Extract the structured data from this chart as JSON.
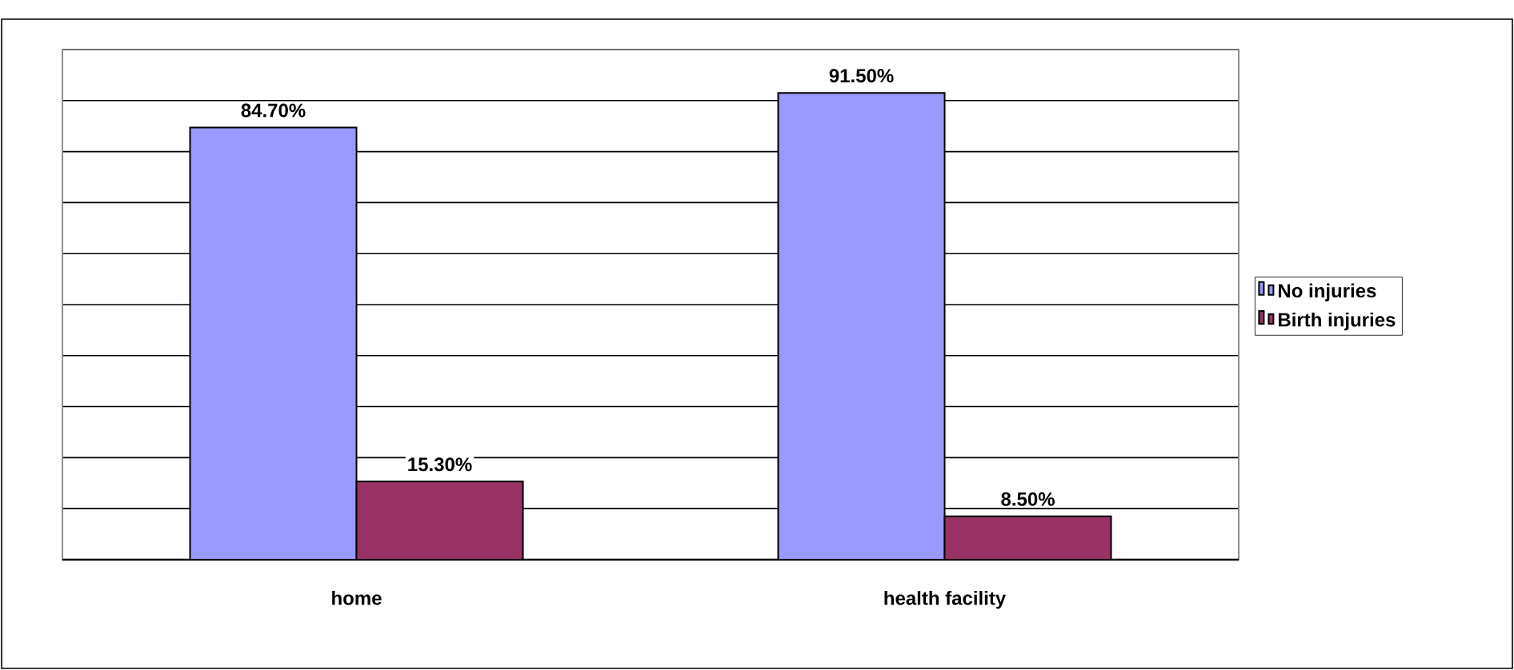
{
  "chart_data": {
    "type": "bar",
    "categories": [
      "home",
      "health facility"
    ],
    "series": [
      {
        "name": "No injuries",
        "color": "#9999ff",
        "values": [
          84.7,
          91.5
        ],
        "value_labels": [
          "84.70%",
          "91.50%"
        ]
      },
      {
        "name": "Birth injuries",
        "color": "#993366",
        "values": [
          15.3,
          8.5
        ],
        "value_labels": [
          "15.30%",
          "8.50%"
        ]
      }
    ],
    "ylim": [
      0,
      100
    ],
    "yticks": [
      {
        "value": 0,
        "label": null
      },
      {
        "value": 10,
        "label": null
      },
      {
        "value": 20,
        "label": null
      },
      {
        "value": 30,
        "label": null
      },
      {
        "value": 40,
        "label": null
      },
      {
        "value": 50,
        "label": null
      },
      {
        "value": 60,
        "label": null
      },
      {
        "value": 70,
        "label": null
      },
      {
        "value": 80,
        "label": null
      },
      {
        "value": 90,
        "label": null
      },
      {
        "value": 100,
        "label": null
      }
    ],
    "tick_labels": "x",
    "grid": "y",
    "legend": "right"
  }
}
